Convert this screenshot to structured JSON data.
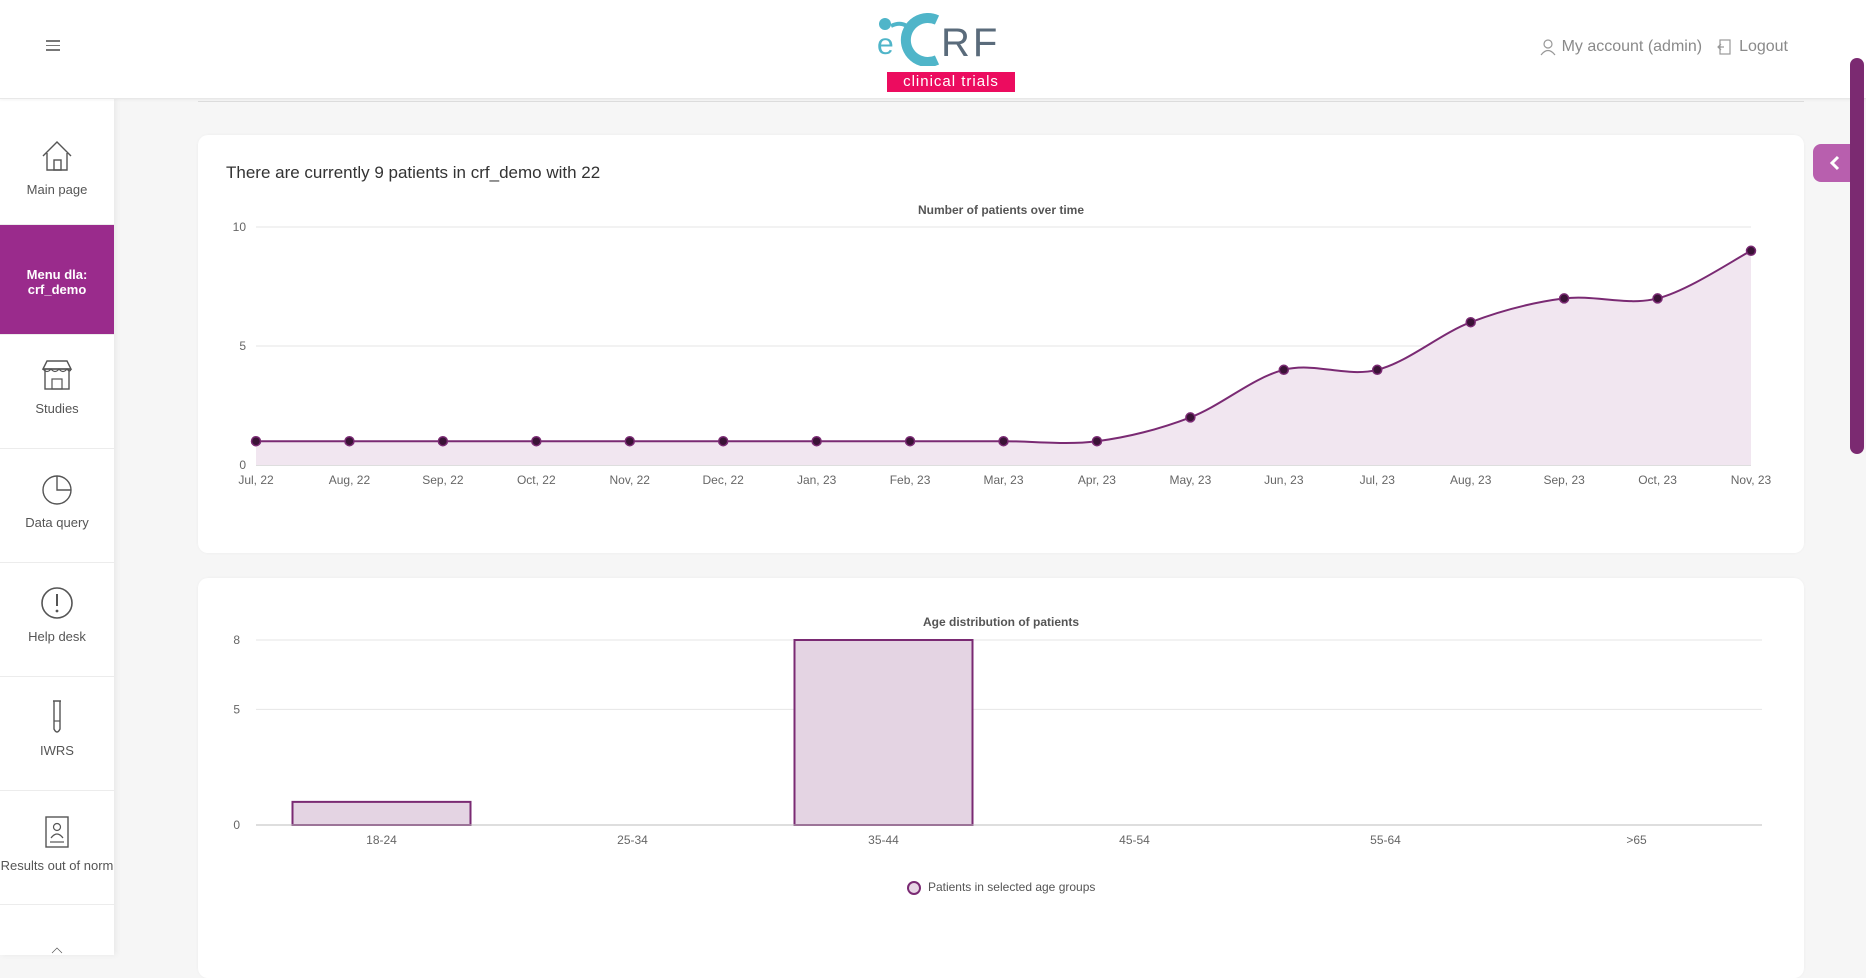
{
  "header": {
    "logo_text": "eCRF",
    "logo_tagline": "clinical trials",
    "account_label": "My account (admin)",
    "logout_label": "Logout"
  },
  "sidebar": {
    "items": [
      {
        "label": "Main page",
        "icon": "home-icon"
      },
      {
        "label": "Menu dla: crf_demo",
        "icon": ""
      },
      {
        "label": "Studies",
        "icon": "studies-icon"
      },
      {
        "label": "Data query",
        "icon": "pie-chart-icon"
      },
      {
        "label": "Help desk",
        "icon": "exclamation-icon"
      },
      {
        "label": "IWRS",
        "icon": "test-tube-icon"
      },
      {
        "label": "Results out of norm",
        "icon": "report-icon"
      }
    ]
  },
  "summary": {
    "text": "There are currently 9 patients in crf_demo with 22"
  },
  "chart_data": [
    {
      "type": "area",
      "title": "Number of patients over time",
      "categories": [
        "Jul, 22",
        "Aug, 22",
        "Sep, 22",
        "Oct, 22",
        "Nov, 22",
        "Dec, 22",
        "Jan, 23",
        "Feb, 23",
        "Mar, 23",
        "Apr, 23",
        "May, 23",
        "Jun, 23",
        "Jul, 23",
        "Aug, 23",
        "Sep, 23",
        "Oct, 23",
        "Nov, 23"
      ],
      "values": [
        1,
        1,
        1,
        1,
        1,
        1,
        1,
        1,
        1,
        1,
        2,
        4,
        4,
        6,
        7,
        7,
        9
      ],
      "ylim": [
        0,
        10
      ],
      "yticks": [
        0,
        5,
        10
      ],
      "grid": true,
      "color": "#7a2a73"
    },
    {
      "type": "bar",
      "title": "Age distribution of patients",
      "categories": [
        "18-24",
        "25-34",
        "35-44",
        "45-54",
        "55-64",
        ">65"
      ],
      "series": [
        {
          "name": "Patients in selected age groups",
          "values": [
            1,
            0,
            8,
            0,
            0,
            0
          ]
        }
      ],
      "ylim": [
        0,
        8
      ],
      "yticks": [
        0,
        5,
        8
      ],
      "grid": true,
      "legend": "bottom",
      "color": "#7a2a73"
    }
  ]
}
